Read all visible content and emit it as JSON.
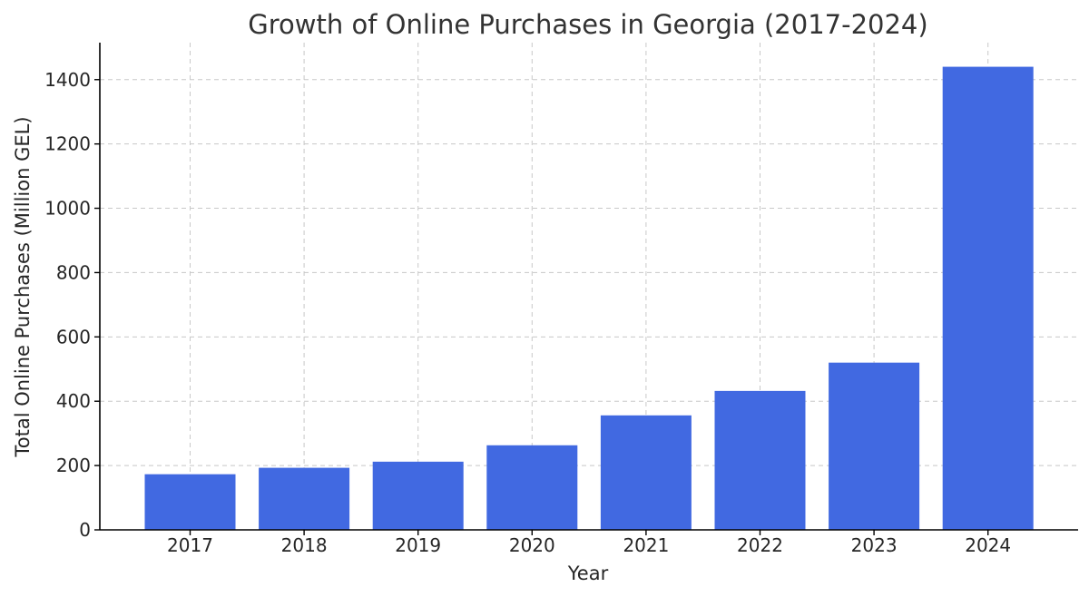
{
  "chart_data": {
    "type": "bar",
    "title": "Growth of Online Purchases in Georgia (2017-2024)",
    "xlabel": "Year",
    "ylabel": "Total Online Purchases (Million GEL)",
    "categories": [
      "2017",
      "2018",
      "2019",
      "2020",
      "2021",
      "2022",
      "2023",
      "2024"
    ],
    "values": [
      173,
      193,
      212,
      263,
      356,
      432,
      520,
      1440
    ],
    "ylim": [
      0,
      1515
    ],
    "yticks": [
      0,
      200,
      400,
      600,
      800,
      1000,
      1200,
      1400
    ],
    "grid": true,
    "bar_color": "#4169e1"
  }
}
